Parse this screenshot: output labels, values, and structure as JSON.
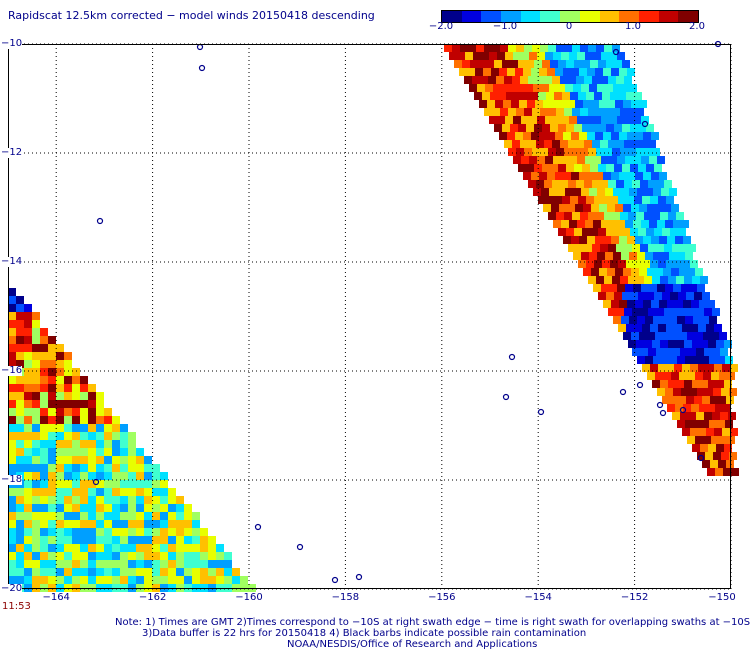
{
  "title": "Rapidscat 12.5km corrected − model winds 20150418 descending",
  "colorbar": {
    "ticks": [
      "−2.0",
      "−1.0",
      "0",
      "1.0",
      "2.0"
    ],
    "tick_values": [
      -2.0,
      -1.0,
      0,
      1.0,
      2.0
    ],
    "colors": [
      "#00008b",
      "#0000e0",
      "#0050ff",
      "#009fff",
      "#00e0ff",
      "#40ffd0",
      "#a0ff60",
      "#e8ff00",
      "#ffc000",
      "#ff7000",
      "#ff2000",
      "#c00000",
      "#800000"
    ]
  },
  "map": {
    "lat_labels": [
      "−10",
      "−12",
      "−14",
      "−16",
      "−18",
      "−20"
    ],
    "lat_values": [
      -10,
      -12,
      -14,
      -16,
      -18,
      -20
    ],
    "lon_labels": [
      "−164",
      "−162",
      "−160",
      "−158",
      "−156",
      "−154",
      "−152",
      "−150"
    ],
    "lon_values": [
      -164,
      -162,
      -160,
      -158,
      -156,
      -154,
      -152,
      -150
    ]
  },
  "time_label": "11:53",
  "notes": [
    "Note: 1) Times are GMT 2)Times correspond to −10S at right swath edge − time is right swath for overlapping swaths at −10S",
    "3)Data buffer is 22 hrs for 20150418 4) Black barbs indicate possible rain contamination",
    "NOAA/NESDIS/Office of Research and Applications"
  ]
}
